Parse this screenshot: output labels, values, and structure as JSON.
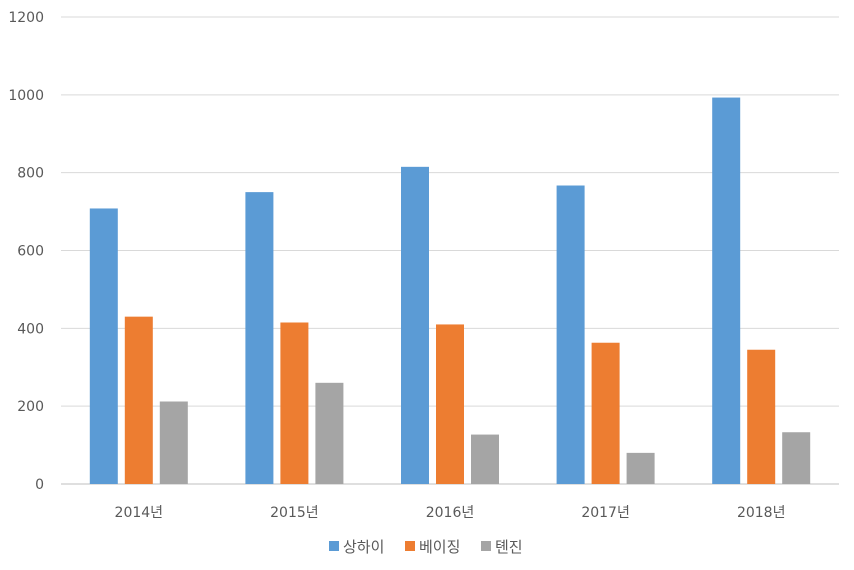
{
  "chart_data": {
    "type": "bar",
    "title": "",
    "xlabel": "",
    "ylabel": "",
    "categories": [
      "2014년",
      "2015년",
      "2016년",
      "2017년",
      "2018년"
    ],
    "series": [
      {
        "name": "상하이",
        "color": "#5B9BD5",
        "values": [
          708,
          750,
          815,
          767,
          993
        ]
      },
      {
        "name": "베이징",
        "color": "#ED7D31",
        "values": [
          430,
          415,
          410,
          363,
          345
        ]
      },
      {
        "name": "톈진",
        "color": "#A5A5A5",
        "values": [
          212,
          260,
          127,
          80,
          133
        ]
      }
    ],
    "ylim": [
      0,
      1200
    ],
    "yticks": [
      0,
      200,
      400,
      600,
      800,
      1000,
      1200
    ],
    "grid": true,
    "legend_position": "bottom"
  }
}
